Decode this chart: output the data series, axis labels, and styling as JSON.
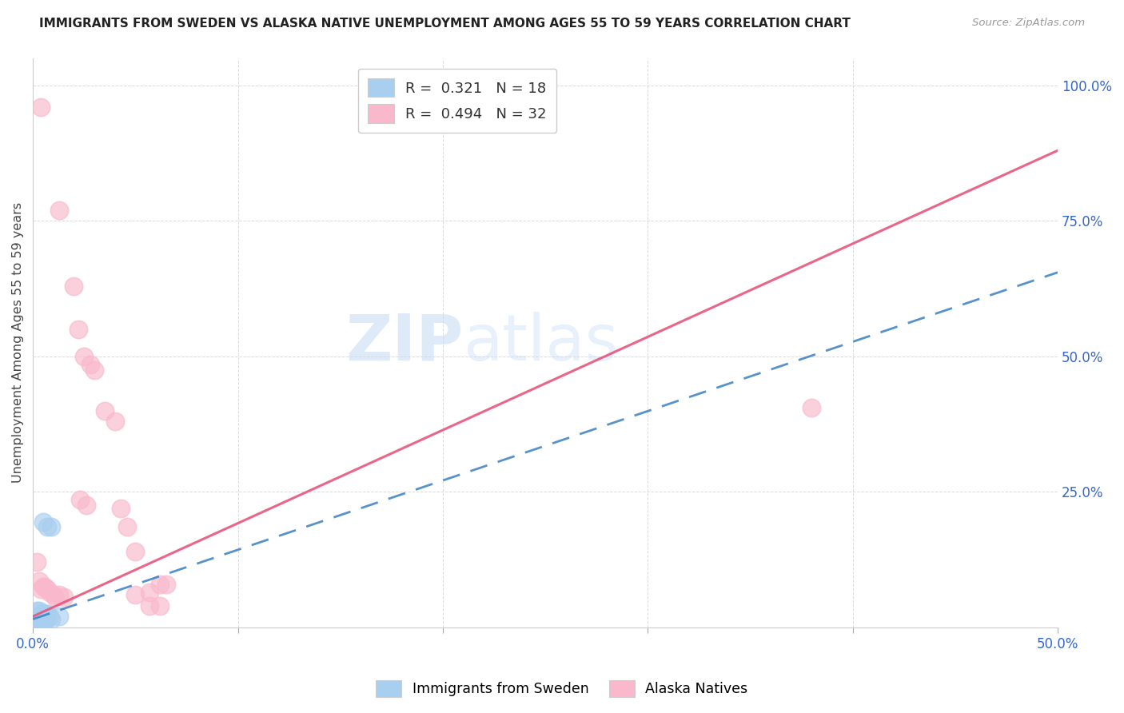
{
  "title": "IMMIGRANTS FROM SWEDEN VS ALASKA NATIVE UNEMPLOYMENT AMONG AGES 55 TO 59 YEARS CORRELATION CHART",
  "source": "Source: ZipAtlas.com",
  "ylabel": "Unemployment Among Ages 55 to 59 years",
  "xlim": [
    0.0,
    0.5
  ],
  "ylim": [
    0.0,
    1.05
  ],
  "xticks": [
    0.0,
    0.1,
    0.2,
    0.3,
    0.4,
    0.5
  ],
  "xticklabels": [
    "0.0%",
    "",
    "",
    "",
    "",
    "50.0%"
  ],
  "yticks": [
    0.0,
    0.25,
    0.5,
    0.75,
    1.0
  ],
  "yticklabels": [
    "",
    "25.0%",
    "50.0%",
    "75.0%",
    "100.0%"
  ],
  "legend_entries": [
    {
      "label": "R =  0.321   N = 18",
      "color": "#a8cff0"
    },
    {
      "label": "R =  0.494   N = 32",
      "color": "#f9b8cb"
    }
  ],
  "sweden_points": [
    [
      0.005,
      0.195
    ],
    [
      0.007,
      0.185
    ],
    [
      0.009,
      0.185
    ],
    [
      0.001,
      0.01
    ],
    [
      0.002,
      0.01
    ],
    [
      0.003,
      0.01
    ],
    [
      0.004,
      0.01
    ],
    [
      0.005,
      0.01
    ],
    [
      0.006,
      0.01
    ],
    [
      0.002,
      0.03
    ],
    [
      0.003,
      0.03
    ],
    [
      0.004,
      0.025
    ],
    [
      0.005,
      0.025
    ],
    [
      0.006,
      0.025
    ],
    [
      0.007,
      0.025
    ],
    [
      0.008,
      0.02
    ],
    [
      0.009,
      0.015
    ],
    [
      0.013,
      0.02
    ]
  ],
  "alaska_points": [
    [
      0.004,
      0.96
    ],
    [
      0.013,
      0.77
    ],
    [
      0.02,
      0.63
    ],
    [
      0.022,
      0.55
    ],
    [
      0.025,
      0.5
    ],
    [
      0.028,
      0.485
    ],
    [
      0.03,
      0.475
    ],
    [
      0.035,
      0.4
    ],
    [
      0.023,
      0.235
    ],
    [
      0.026,
      0.225
    ],
    [
      0.04,
      0.38
    ],
    [
      0.043,
      0.22
    ],
    [
      0.046,
      0.185
    ],
    [
      0.05,
      0.14
    ],
    [
      0.057,
      0.065
    ],
    [
      0.062,
      0.08
    ],
    [
      0.065,
      0.08
    ],
    [
      0.002,
      0.12
    ],
    [
      0.003,
      0.085
    ],
    [
      0.004,
      0.07
    ],
    [
      0.005,
      0.075
    ],
    [
      0.006,
      0.075
    ],
    [
      0.007,
      0.07
    ],
    [
      0.008,
      0.065
    ],
    [
      0.01,
      0.06
    ],
    [
      0.011,
      0.055
    ],
    [
      0.013,
      0.06
    ],
    [
      0.015,
      0.055
    ],
    [
      0.057,
      0.04
    ],
    [
      0.062,
      0.04
    ],
    [
      0.38,
      0.405
    ],
    [
      0.05,
      0.06
    ]
  ],
  "sweden_line_intercept": 0.015,
  "sweden_line_slope": 1.28,
  "alaska_line_intercept": 0.02,
  "alaska_line_slope": 1.72,
  "sweden_color": "#a8cff0",
  "alaska_color": "#f9b8cb",
  "sweden_line_color": "#3a7fc1",
  "alaska_line_color": "#e8547a",
  "background_color": "#ffffff",
  "grid_color": "#cccccc"
}
